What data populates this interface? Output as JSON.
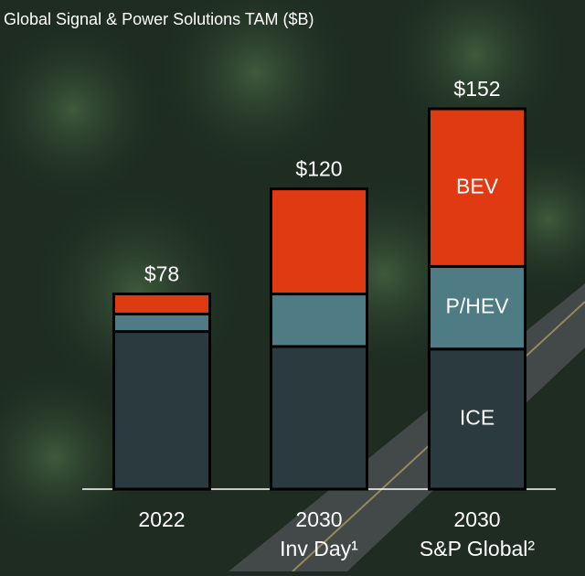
{
  "chart_data": {
    "type": "stacked-bar",
    "title": "Global Signal & Power Solutions TAM ($B)",
    "categories": [
      [
        "2022"
      ],
      [
        "2030",
        "Inv Day¹"
      ],
      [
        "2030",
        "S&P Global²"
      ]
    ],
    "series": [
      {
        "name": "ICE",
        "color": "#2a3a3f",
        "values": [
          63,
          57,
          56
        ]
      },
      {
        "name": "P/HEV",
        "color": "#4f7b85",
        "values": [
          7,
          21,
          33
        ]
      },
      {
        "name": "BEV",
        "color": "#e03a12",
        "values": [
          8,
          42,
          63
        ]
      }
    ],
    "totals": {
      "values": [
        78,
        120,
        152
      ],
      "value_labels": [
        "$78",
        "$120",
        "$152"
      ]
    }
  }
}
